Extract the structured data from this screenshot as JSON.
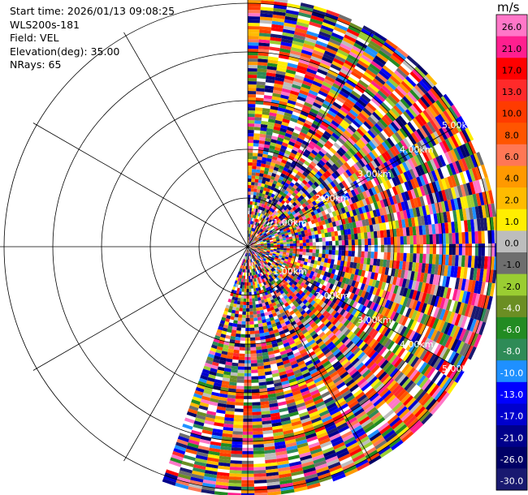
{
  "info": {
    "start_time": "Start time: 2026/01/13 09:08:25",
    "instrument": "WLS200s-181",
    "field": "Field: VEL",
    "elevation": "Elevation(deg): 35.00",
    "nrays": "NRays: 65"
  },
  "chart_data": {
    "type": "heatmap",
    "projection": "polar PPI",
    "field": "VEL",
    "units": "m/s",
    "elevation_deg": 35.0,
    "n_rays": 65,
    "azimuth_start_deg": 0,
    "azimuth_end_deg": 200,
    "range_rings": [
      {
        "label": "1.00km"
      },
      {
        "label": "2.00km"
      },
      {
        "label": "3.00km"
      },
      {
        "label": "4.00km"
      },
      {
        "label": "5.00km"
      }
    ],
    "spokes_deg": [
      0,
      30,
      60,
      90,
      120,
      150,
      180,
      210,
      240,
      270,
      300,
      330
    ],
    "colorbar": {
      "title": "m/s",
      "ticks": [
        "26.0",
        "21.0",
        "17.0",
        "13.0",
        "10.0",
        "8.0",
        "6.0",
        "4.0",
        "2.0",
        "1.0",
        "0.0",
        "-1.0",
        "-2.0",
        "-4.0",
        "-6.0",
        "-8.0",
        "-10.0",
        "-13.0",
        "-17.0",
        "-21.0",
        "-26.0",
        "-30.0"
      ],
      "colors": [
        "#ff77c8",
        "#ff1f8f",
        "#ff0000",
        "#ff2a2a",
        "#ff3b00",
        "#ff5500",
        "#ff7755",
        "#ff9900",
        "#ffbb00",
        "#ffee00",
        "#bdbdbd",
        "#6e6e6e",
        "#9acd32",
        "#6b8e23",
        "#228b22",
        "#2e8b57",
        "#1e90ff",
        "#0000ff",
        "#0000cd",
        "#00008b",
        "#000066",
        "#191970"
      ]
    }
  }
}
